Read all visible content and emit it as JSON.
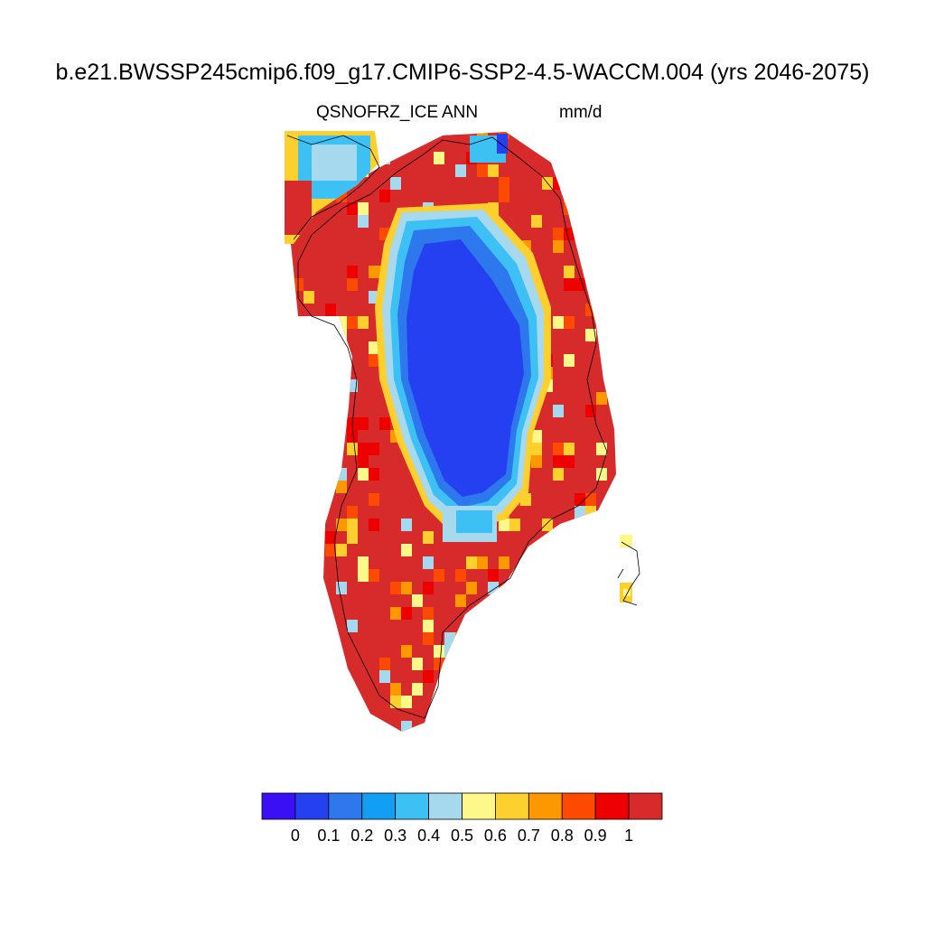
{
  "title": "b.e21.BWSSP245cmip6.f09_g17.CMIP6-SSP2-4.5-WACCM.004 (yrs 2046-2075)",
  "subtitle_left": "QSNOFRZ_ICE",
  "subtitle_center": "ANN",
  "subtitle_right": "mm/d",
  "colorbar": {
    "colors": [
      "#3a0ff5",
      "#2540f0",
      "#2e78ee",
      "#129ff3",
      "#3dc0f3",
      "#a6d8ee",
      "#fef78a",
      "#fed02d",
      "#fe9800",
      "#fc4a00",
      "#ef0000",
      "#d72b2b"
    ],
    "tick_labels": [
      "0",
      "0.1",
      "0.2",
      "0.3",
      "0.4",
      "0.5",
      "0.6",
      "0.7",
      "0.8",
      "0.9",
      "1"
    ]
  },
  "map": {
    "region": "Greenland",
    "field": "QSNOFRZ_ICE",
    "units": "mm/d",
    "value_range": [
      0,
      1
    ]
  }
}
